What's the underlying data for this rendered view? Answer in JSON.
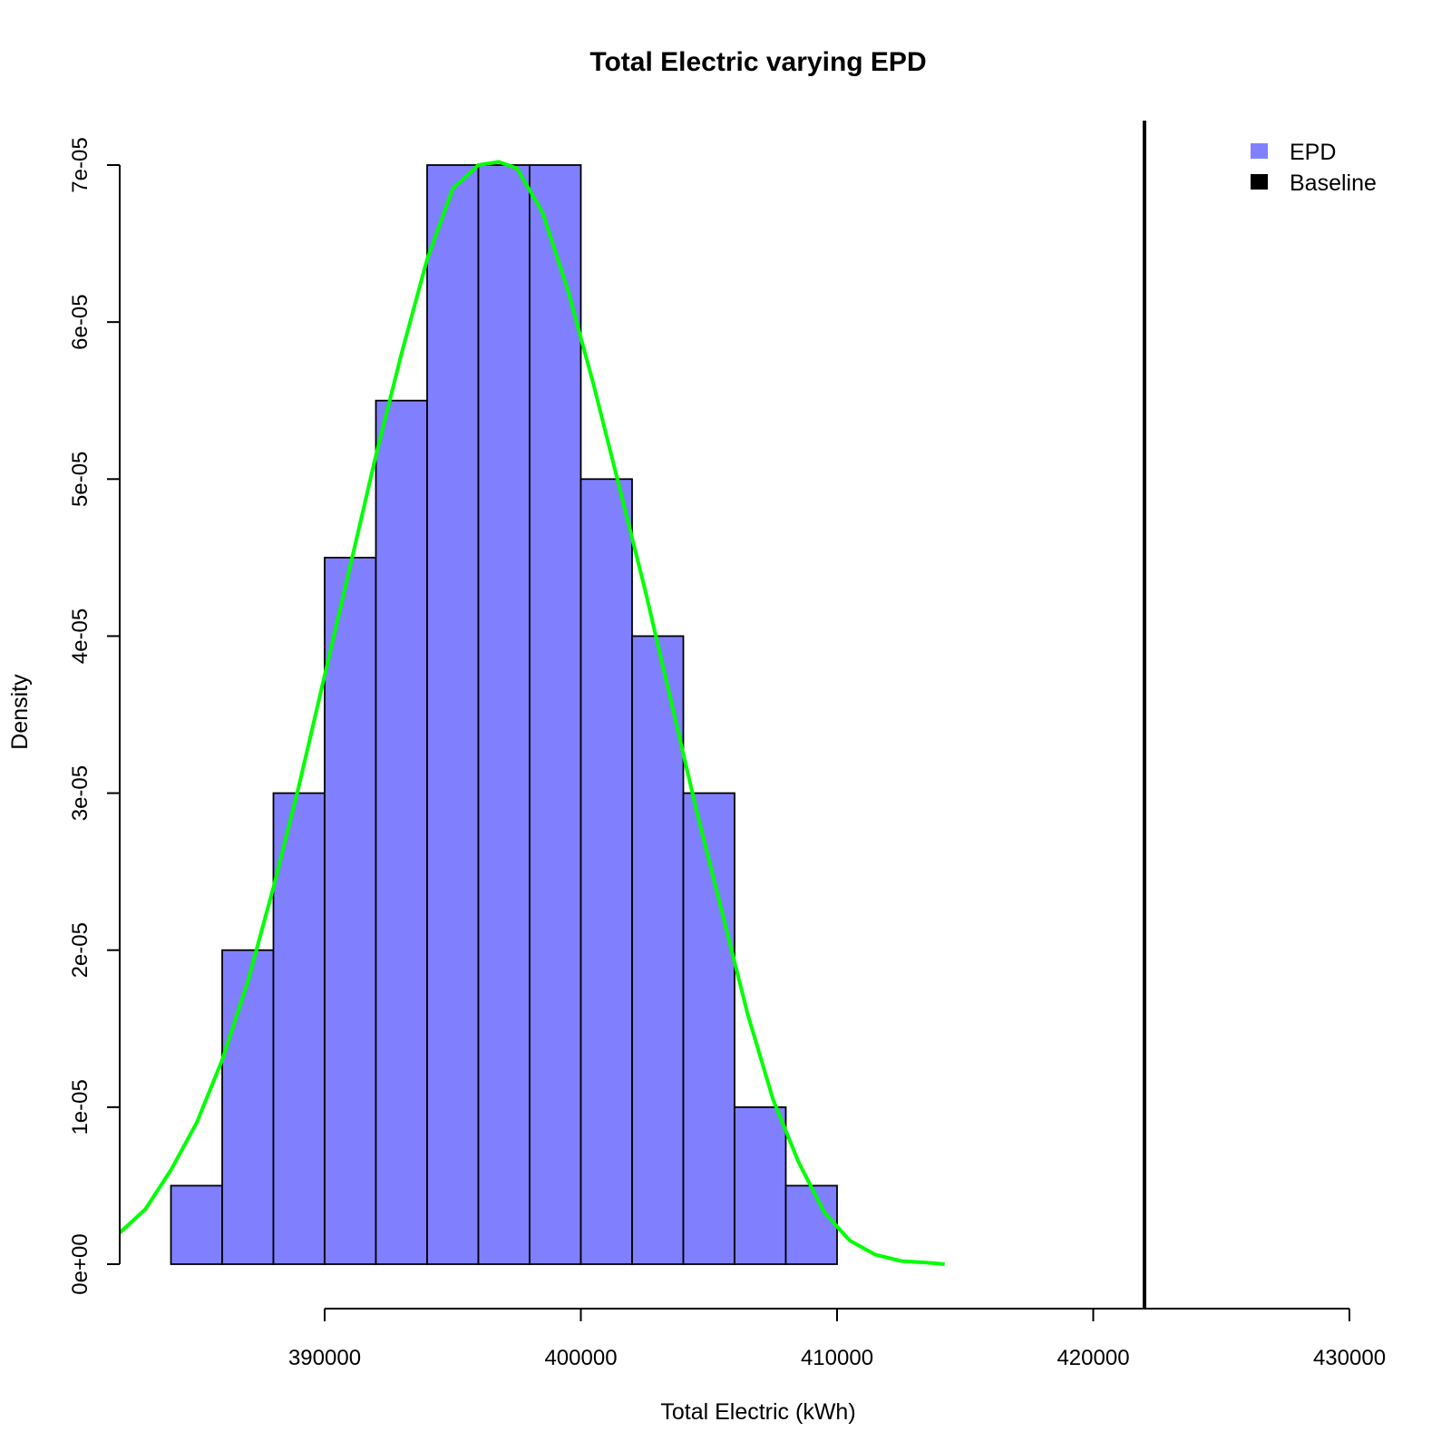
{
  "chart_data": {
    "type": "bar",
    "title": "Total Electric varying EPD",
    "xlabel": "Total Electric (kWh)",
    "ylabel": "Density",
    "xlim": [
      382000,
      430000
    ],
    "ylim": [
      0,
      7e-05
    ],
    "x_ticks": [
      390000,
      400000,
      410000,
      420000,
      430000
    ],
    "x_tick_labels": [
      "390000",
      "400000",
      "410000",
      "420000",
      "430000"
    ],
    "y_ticks": [
      0,
      1e-05,
      2e-05,
      3e-05,
      4e-05,
      5e-05,
      6e-05,
      7e-05
    ],
    "y_tick_labels": [
      "0e+00",
      "1e-05",
      "2e-05",
      "3e-05",
      "4e-05",
      "5e-05",
      "6e-05",
      "7e-05"
    ],
    "histogram": {
      "name": "EPD",
      "color": "#8080ff",
      "bins": [
        {
          "x0": 384000,
          "x1": 386000,
          "density": 5e-06
        },
        {
          "x0": 386000,
          "x1": 388000,
          "density": 2e-05
        },
        {
          "x0": 388000,
          "x1": 390000,
          "density": 3e-05
        },
        {
          "x0": 390000,
          "x1": 392000,
          "density": 4.5e-05
        },
        {
          "x0": 392000,
          "x1": 394000,
          "density": 5.5e-05
        },
        {
          "x0": 394000,
          "x1": 396000,
          "density": 7e-05
        },
        {
          "x0": 396000,
          "x1": 398000,
          "density": 7e-05
        },
        {
          "x0": 398000,
          "x1": 400000,
          "density": 7e-05
        },
        {
          "x0": 400000,
          "x1": 402000,
          "density": 5e-05
        },
        {
          "x0": 402000,
          "x1": 404000,
          "density": 4e-05
        },
        {
          "x0": 404000,
          "x1": 406000,
          "density": 3e-05
        },
        {
          "x0": 406000,
          "x1": 408000,
          "density": 1e-05
        },
        {
          "x0": 408000,
          "x1": 410000,
          "density": 5e-06
        }
      ]
    },
    "density_curve": {
      "color": "#00ff00",
      "x": [
        382000,
        383000,
        384000,
        385000,
        386000,
        387000,
        388000,
        389000,
        390000,
        391000,
        392000,
        393000,
        394000,
        395000,
        396000,
        396800,
        397500,
        398500,
        399500,
        400500,
        401500,
        402500,
        403500,
        404500,
        405500,
        406500,
        407500,
        408500,
        409500,
        410500,
        411500,
        412500,
        413500,
        414200
      ],
      "y": [
        2e-06,
        3.5e-06,
        6e-06,
        9e-06,
        1.3e-05,
        1.8e-05,
        2.4e-05,
        3.05e-05,
        3.75e-05,
        4.45e-05,
        5.15e-05,
        5.8e-05,
        6.4e-05,
        6.85e-05,
        7e-05,
        7.02e-05,
        6.98e-05,
        6.7e-05,
        6.2e-05,
        5.6e-05,
        4.95e-05,
        4.3e-05,
        3.6e-05,
        2.9e-05,
        2.25e-05,
        1.6e-05,
        1.05e-05,
        6.5e-06,
        3.3e-06,
        1.5e-06,
        6e-07,
        2e-07,
        1e-07,
        0
      ]
    },
    "baseline": {
      "name": "Baseline",
      "x": 422000,
      "color": "#000000"
    },
    "legend": {
      "placement": "top-right",
      "entries": [
        {
          "label": "EPD",
          "color": "#8080ff"
        },
        {
          "label": "Baseline",
          "color": "#000000"
        }
      ]
    }
  }
}
